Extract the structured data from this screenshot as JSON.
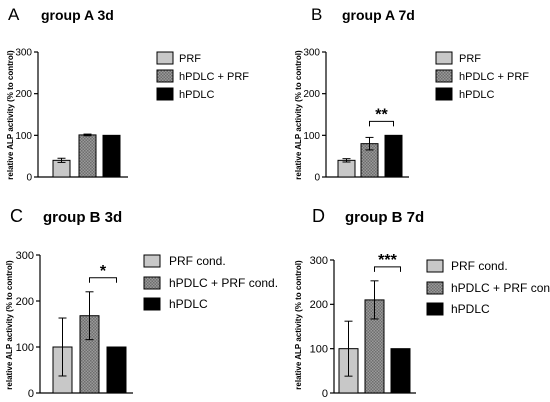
{
  "figure": {
    "bar_fill": "#c8c8c8",
    "pattern_fill": "#8a8a8a",
    "control_fill": "#000000"
  },
  "chart_data": [
    {
      "type": "bar",
      "panel_letter": "A",
      "title": "group A 3d",
      "xlabel": "",
      "ylabel": "relative ALP activity (% to control)",
      "ylim": [
        0,
        300
      ],
      "yticks": [
        0,
        100,
        200,
        300
      ],
      "categories": [
        "PRF",
        "hPDLC + PRF",
        "hPDLC"
      ],
      "values": [
        40,
        101,
        100
      ],
      "errors": [
        5,
        2,
        0
      ],
      "significance": null,
      "legend_position": "right"
    },
    {
      "type": "bar",
      "panel_letter": "B",
      "title": "group A 7d",
      "xlabel": "",
      "ylabel": "relative ALP activity (% to control)",
      "ylim": [
        0,
        300
      ],
      "yticks": [
        0,
        100,
        200,
        300
      ],
      "categories": [
        "PRF",
        "hPDLC + PRF",
        "hPDLC"
      ],
      "values": [
        40,
        80,
        100
      ],
      "errors": [
        4,
        15,
        0
      ],
      "significance": {
        "from": 1,
        "to": 2,
        "label": "**"
      },
      "legend_position": "right"
    },
    {
      "type": "bar",
      "panel_letter": "C",
      "title": "group B 3d",
      "xlabel": "",
      "ylabel": "relative ALP activity (% to control)",
      "ylim": [
        0,
        300
      ],
      "yticks": [
        0,
        100,
        200,
        300
      ],
      "categories": [
        "PRF cond.",
        "hPDLC + PRF cond.",
        "hPDLC"
      ],
      "values": [
        100,
        168,
        100
      ],
      "errors": [
        63,
        52,
        0
      ],
      "significance": {
        "from": 1,
        "to": 2,
        "label": "*"
      },
      "legend_position": "right"
    },
    {
      "type": "bar",
      "panel_letter": "D",
      "title": "group B 7d",
      "xlabel": "",
      "ylabel": "relative ALP activity (% to control)",
      "ylim": [
        0,
        300
      ],
      "yticks": [
        0,
        100,
        200,
        300
      ],
      "categories": [
        "PRF cond.",
        "hPDLC + PRF cond.",
        "hPDLC"
      ],
      "values": [
        100,
        210,
        100
      ],
      "errors": [
        62,
        43,
        0
      ],
      "significance": {
        "from": 1,
        "to": 2,
        "label": "***"
      },
      "legend_position": "right"
    }
  ]
}
